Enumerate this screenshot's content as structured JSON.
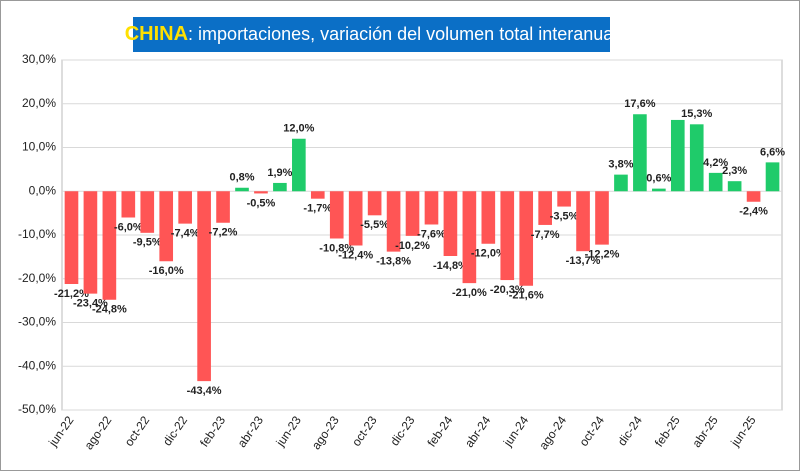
{
  "chart_data": {
    "type": "bar",
    "title": {
      "highlight": "CHINA",
      "text": ": importaciones, variación del volumen total interanual"
    },
    "categories": [
      "jun-22",
      null,
      "ago-22",
      null,
      "oct-22",
      null,
      "dic-22",
      null,
      "feb-23",
      null,
      "abr-23",
      null,
      "jun-23",
      null,
      "ago-23",
      null,
      "oct-23",
      null,
      "dic-23",
      null,
      "feb-24",
      null,
      "abr-24",
      null,
      "jun-24",
      null,
      "ago-24",
      null,
      "oct-24",
      null,
      "dic-24",
      null,
      "feb-25",
      null,
      "abr-25",
      null,
      "jun-25",
      null
    ],
    "values": [
      -21.2,
      -23.4,
      -24.8,
      -6.0,
      -9.5,
      -16.0,
      -7.4,
      -43.4,
      -7.2,
      0.8,
      -0.5,
      1.9,
      12.0,
      -1.7,
      -10.8,
      -12.4,
      -5.5,
      -13.8,
      -10.2,
      -7.6,
      -14.8,
      -21.0,
      -12.0,
      -20.3,
      -21.6,
      -7.7,
      -3.5,
      -13.7,
      -12.2,
      3.8,
      17.6,
      0.6,
      16.3,
      15.3,
      4.2,
      2.3,
      -2.4,
      6.6
    ],
    "value_labels": [
      "-21,2%",
      "-23,4%",
      "-24,8%",
      "-6,0%",
      "-9,5%",
      "-16,0%",
      "-7,4%",
      "-43,4%",
      "-7,2%",
      "0,8%",
      "-0,5%",
      "1,9%",
      "12,0%",
      "-1,7%",
      "-10,8%",
      "-12,4%",
      "-5,5%",
      "-13,8%",
      "-10,2%",
      "-7,6%",
      "-14,8%",
      "-21,0%",
      "-12,0%",
      "-20,3%",
      "-21,6%",
      "-7,7%",
      "-3,5%",
      "-13,7%",
      "-12,2%",
      "3,8%",
      "17,6%",
      "0,6%",
      null,
      "15,3%",
      "4,2%",
      "2,3%",
      "-2,4%",
      "6,6%"
    ],
    "positive_color": "#1fcb6a",
    "negative_color": "#ff5555",
    "ylim": [
      -50,
      30
    ],
    "yticks": [
      {
        "value": -50,
        "label": "-50,0%"
      },
      {
        "value": -40,
        "label": "-40,0%"
      },
      {
        "value": -30,
        "label": "-30,0%"
      },
      {
        "value": -20,
        "label": "-20,0%"
      },
      {
        "value": -10,
        "label": "-10,0%"
      },
      {
        "value": 0,
        "label": "0,0%"
      },
      {
        "value": 10,
        "label": "10,0%"
      },
      {
        "value": 20,
        "label": "20,0%"
      },
      {
        "value": 30,
        "label": "30,0%"
      }
    ],
    "grid": true
  }
}
